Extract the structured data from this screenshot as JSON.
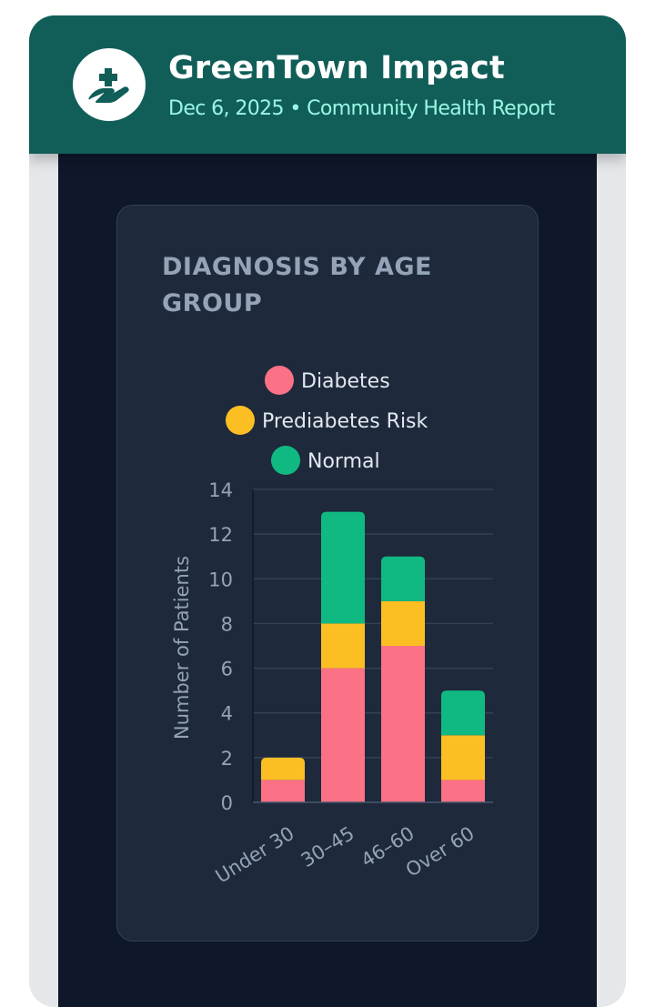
{
  "header": {
    "title": "GreenTown Impact",
    "subtitle": "Dec 6, 2025 • Community Health Report",
    "logo_icon": "hand-with-medical-cross-icon",
    "background": "#115e59"
  },
  "card": {
    "title": "DIAGNOSIS BY AGE GROUP"
  },
  "chart_data": {
    "type": "bar",
    "stacked": true,
    "categories": [
      "Under 30",
      "30–45",
      "46–60",
      "Over 60"
    ],
    "series": [
      {
        "name": "Diabetes",
        "color": "#fb7185",
        "values": [
          1,
          6,
          7,
          1
        ]
      },
      {
        "name": "Prediabetes Risk",
        "color": "#fbbf24",
        "values": [
          1,
          2,
          2,
          2
        ]
      },
      {
        "name": "Normal",
        "color": "#10b981",
        "values": [
          0,
          5,
          2,
          2
        ]
      }
    ],
    "ylabel": "Number of Patients",
    "xlabel": "",
    "ylim": [
      0,
      14
    ],
    "yticks": [
      0,
      2,
      4,
      6,
      8,
      10,
      12,
      14
    ],
    "grid": true,
    "legend": "top"
  }
}
